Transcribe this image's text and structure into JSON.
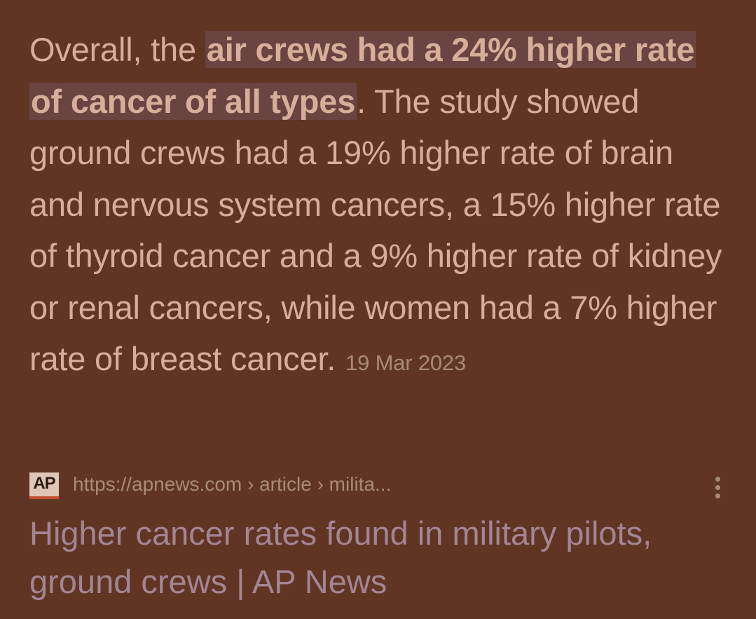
{
  "snippet": {
    "lead": "Overall, the ",
    "highlight": "air crews had a 24% higher rate of cancer of all types",
    "body": ". The study showed ground crews had a 19% higher rate of brain and nervous system cancers, a 15% higher rate of thyroid cancer and a 9% higher rate of kidney or renal cancers, while women had a 7% higher rate of breast cancer.",
    "date": "19 Mar 2023"
  },
  "result": {
    "logo_text": "AP",
    "url": "https://apnews.com › article › milita...",
    "title": "Higher cancer rates found in military pilots, ground crews | AP News",
    "menu_icon": "more-vert-icon"
  },
  "colors": {
    "background": "#603523",
    "snippet_text": "#D7AE99",
    "highlight_bg": "#6A4440",
    "meta_text": "#A88A7B",
    "link_title": "#A38593",
    "logo_accent": "#C4502F"
  }
}
